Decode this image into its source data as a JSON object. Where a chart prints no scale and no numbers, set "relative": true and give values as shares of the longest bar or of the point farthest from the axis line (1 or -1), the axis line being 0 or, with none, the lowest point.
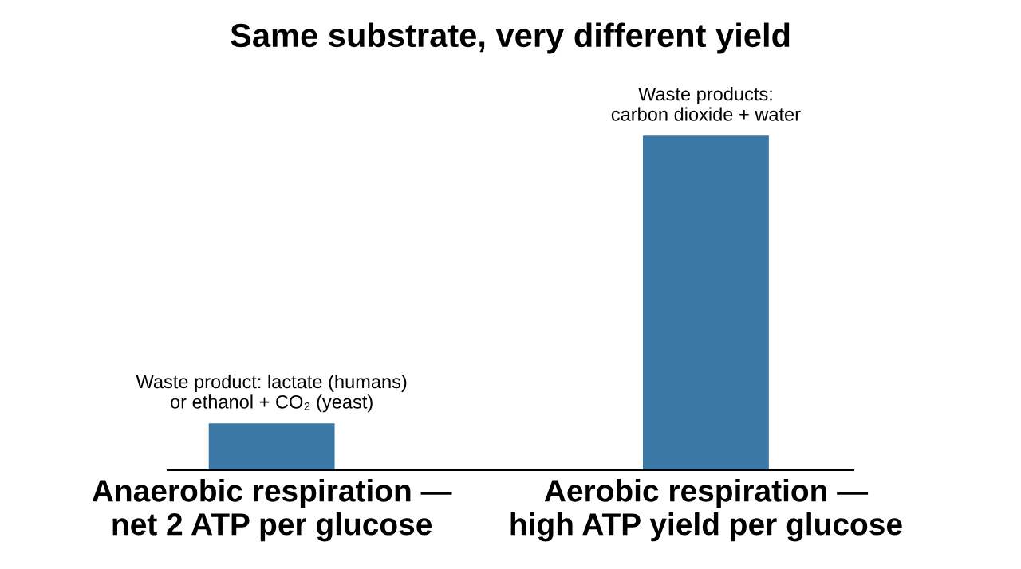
{
  "chart_data": {
    "type": "bar",
    "title": "Same substrate, very different yield",
    "categories": [
      "Anaerobic respiration —\nnet 2 ATP per glucose",
      "Aerobic respiration —\nhigh ATP yield per glucose"
    ],
    "values": [
      0.14,
      1
    ],
    "color": "#3b78a6",
    "relative": true,
    "grid": false,
    "legend": false,
    "annotations": [
      {
        "text": "Waste product: lactate (humans)\nor ethanol + CO₂ (yeast)",
        "x": "Anaerobic respiration —\nnet 2 ATP per glucose",
        "y": 0.14
      },
      {
        "text": "Waste products:\ncarbon dioxide + water",
        "x": "Aerobic respiration —\nhigh ATP yield per glucose",
        "y": 1
      }
    ]
  }
}
